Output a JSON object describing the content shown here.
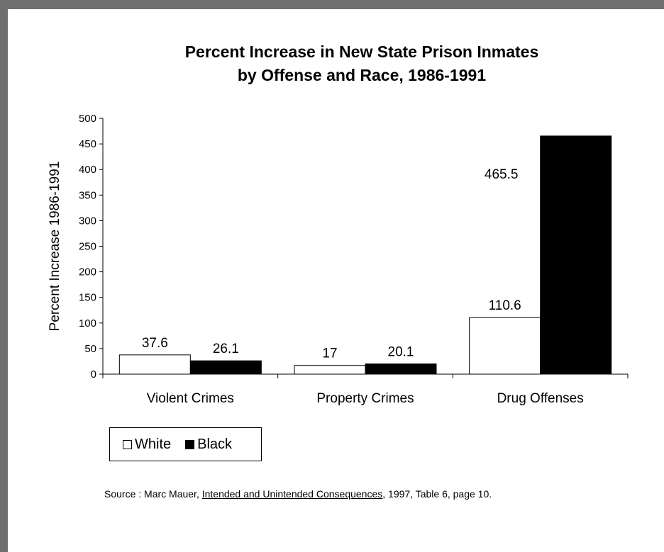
{
  "chart_data": {
    "type": "bar",
    "title_line1": "Percent Increase in New State Prison Inmates",
    "title_line2": "by Offense and Race, 1986-1991",
    "xlabel": "",
    "ylabel": "Percent Increase 1986-1991",
    "ylim": [
      0,
      500
    ],
    "yticks": [
      0,
      50,
      100,
      150,
      200,
      250,
      300,
      350,
      400,
      450,
      500
    ],
    "categories": [
      "Violent Crimes",
      "Property Crimes",
      "Drug Offenses"
    ],
    "series": [
      {
        "name": "White",
        "values": [
          37.6,
          17,
          110.6
        ],
        "labels": [
          "37.6",
          "17",
          "110.6"
        ],
        "color": "#ffffff"
      },
      {
        "name": "Black",
        "values": [
          26.1,
          20.1,
          465.5
        ],
        "labels": [
          "26.1",
          "20.1",
          "465.5"
        ],
        "color": "#000000"
      }
    ],
    "legend_position": "bottom-left",
    "grid": false
  },
  "source": {
    "prefix": "Source : Marc Mauer, ",
    "book": "Intended and Unintended Consequences",
    "suffix": ", 1997, Table 6, page 10."
  }
}
